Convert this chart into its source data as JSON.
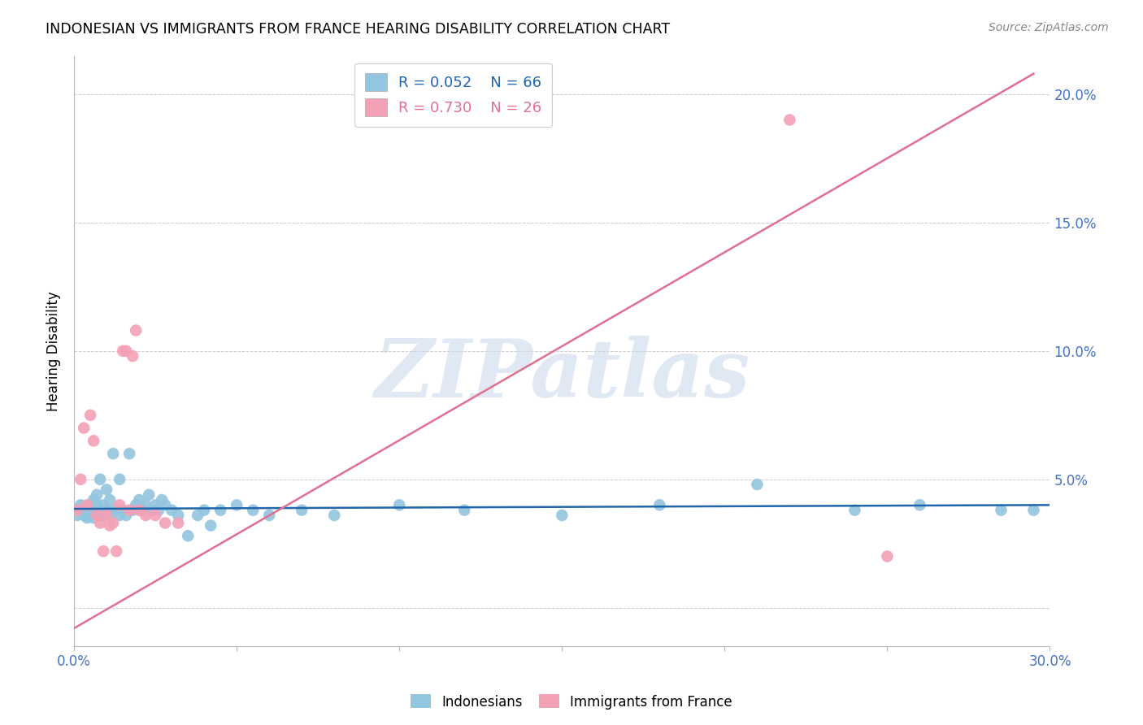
{
  "title": "INDONESIAN VS IMMIGRANTS FROM FRANCE HEARING DISABILITY CORRELATION CHART",
  "source": "Source: ZipAtlas.com",
  "ylabel": "Hearing Disability",
  "xlabel": "",
  "xlim": [
    0.0,
    0.3
  ],
  "ylim": [
    -0.015,
    0.215
  ],
  "xticks": [
    0.0,
    0.05,
    0.1,
    0.15,
    0.2,
    0.25,
    0.3
  ],
  "xtick_labels": [
    "0.0%",
    "",
    "",
    "",
    "",
    "",
    "30.0%"
  ],
  "yticks": [
    0.0,
    0.05,
    0.1,
    0.15,
    0.2
  ],
  "ytick_labels": [
    "",
    "5.0%",
    "10.0%",
    "15.0%",
    "20.0%"
  ],
  "watermark_text": "ZIPatlas",
  "blue_color": "#92c5de",
  "pink_color": "#f4a0b5",
  "blue_line_color": "#2166ac",
  "pink_line_color": "#e07090",
  "R_blue": 0.052,
  "N_blue": 66,
  "R_pink": 0.73,
  "N_pink": 26,
  "indonesians_x": [
    0.001,
    0.002,
    0.002,
    0.003,
    0.003,
    0.003,
    0.004,
    0.004,
    0.005,
    0.005,
    0.005,
    0.006,
    0.006,
    0.007,
    0.007,
    0.007,
    0.008,
    0.008,
    0.008,
    0.009,
    0.009,
    0.009,
    0.01,
    0.01,
    0.011,
    0.011,
    0.012,
    0.012,
    0.013,
    0.014,
    0.014,
    0.015,
    0.016,
    0.017,
    0.018,
    0.019,
    0.02,
    0.021,
    0.022,
    0.023,
    0.024,
    0.025,
    0.026,
    0.027,
    0.028,
    0.03,
    0.032,
    0.035,
    0.038,
    0.04,
    0.042,
    0.045,
    0.05,
    0.055,
    0.06,
    0.07,
    0.08,
    0.1,
    0.12,
    0.15,
    0.18,
    0.21,
    0.24,
    0.26,
    0.285,
    0.295
  ],
  "indonesians_y": [
    0.036,
    0.04,
    0.038,
    0.036,
    0.037,
    0.039,
    0.035,
    0.038,
    0.036,
    0.04,
    0.038,
    0.035,
    0.042,
    0.037,
    0.04,
    0.044,
    0.036,
    0.038,
    0.05,
    0.037,
    0.036,
    0.04,
    0.038,
    0.046,
    0.036,
    0.042,
    0.038,
    0.06,
    0.038,
    0.036,
    0.05,
    0.038,
    0.036,
    0.06,
    0.038,
    0.04,
    0.042,
    0.038,
    0.04,
    0.044,
    0.038,
    0.04,
    0.038,
    0.042,
    0.04,
    0.038,
    0.036,
    0.028,
    0.036,
    0.038,
    0.032,
    0.038,
    0.04,
    0.038,
    0.036,
    0.038,
    0.036,
    0.04,
    0.038,
    0.036,
    0.04,
    0.048,
    0.038,
    0.04,
    0.038,
    0.038
  ],
  "france_x": [
    0.001,
    0.002,
    0.003,
    0.004,
    0.005,
    0.006,
    0.007,
    0.008,
    0.009,
    0.01,
    0.011,
    0.012,
    0.013,
    0.014,
    0.015,
    0.016,
    0.017,
    0.018,
    0.019,
    0.02,
    0.022,
    0.025,
    0.028,
    0.032,
    0.22,
    0.25
  ],
  "france_y": [
    0.038,
    0.05,
    0.07,
    0.04,
    0.075,
    0.065,
    0.036,
    0.033,
    0.022,
    0.036,
    0.032,
    0.033,
    0.022,
    0.04,
    0.1,
    0.1,
    0.038,
    0.098,
    0.108,
    0.038,
    0.036,
    0.036,
    0.033,
    0.033,
    0.19,
    0.02
  ],
  "blue_trend_x": [
    0.0,
    0.3
  ],
  "blue_trend_y": [
    0.0385,
    0.04
  ],
  "pink_trend_x": [
    0.0,
    0.295
  ],
  "pink_trend_y": [
    -0.008,
    0.208
  ]
}
